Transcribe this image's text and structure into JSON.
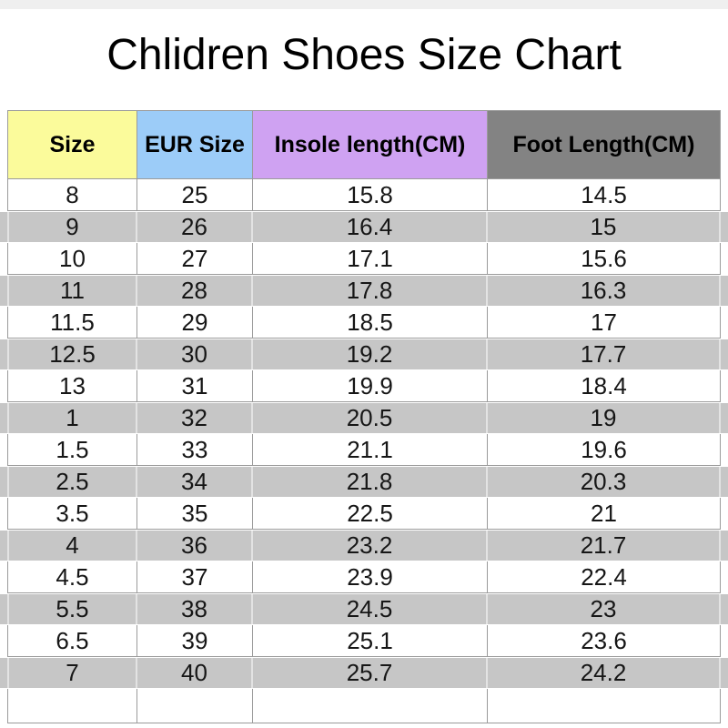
{
  "title": "Chlidren Shoes Size Chart",
  "theme": {
    "top_strip_color": "#efefef",
    "stripe_color": "#c6c6c6",
    "border_color": "#9b9b9b",
    "header_colors": {
      "size": "#fbfb9b",
      "eur_size": "#9cccf8",
      "insole_length": "#cfa2f2",
      "foot_length": "#838383"
    }
  },
  "chart_data": {
    "type": "table",
    "title": "Chlidren Shoes Size Chart",
    "columns": [
      {
        "label": "Size",
        "color": "#fbfb9b"
      },
      {
        "label": "EUR Size",
        "color": "#9cccf8"
      },
      {
        "label": "Insole length(CM)",
        "color": "#cfa2f2"
      },
      {
        "label": "Foot Length(CM)",
        "color": "#838383"
      }
    ],
    "rows": [
      [
        "8",
        "25",
        "15.8",
        "14.5"
      ],
      [
        "9",
        "26",
        "16.4",
        "15"
      ],
      [
        "10",
        "27",
        "17.1",
        "15.6"
      ],
      [
        "11",
        "28",
        "17.8",
        "16.3"
      ],
      [
        "11.5",
        "29",
        "18.5",
        "17"
      ],
      [
        "12.5",
        "30",
        "19.2",
        "17.7"
      ],
      [
        "13",
        "31",
        "19.9",
        "18.4"
      ],
      [
        "1",
        "32",
        "20.5",
        "19"
      ],
      [
        "1.5",
        "33",
        "21.1",
        "19.6"
      ],
      [
        "2.5",
        "34",
        "21.8",
        "20.3"
      ],
      [
        "3.5",
        "35",
        "22.5",
        "21"
      ],
      [
        "4",
        "36",
        "23.2",
        "21.7"
      ],
      [
        "4.5",
        "37",
        "23.9",
        "22.4"
      ],
      [
        "5.5",
        "38",
        "24.5",
        "23"
      ],
      [
        "6.5",
        "39",
        "25.1",
        "23.6"
      ],
      [
        "7",
        "40",
        "25.7",
        "24.2"
      ],
      [
        "",
        "",
        "",
        ""
      ]
    ]
  }
}
